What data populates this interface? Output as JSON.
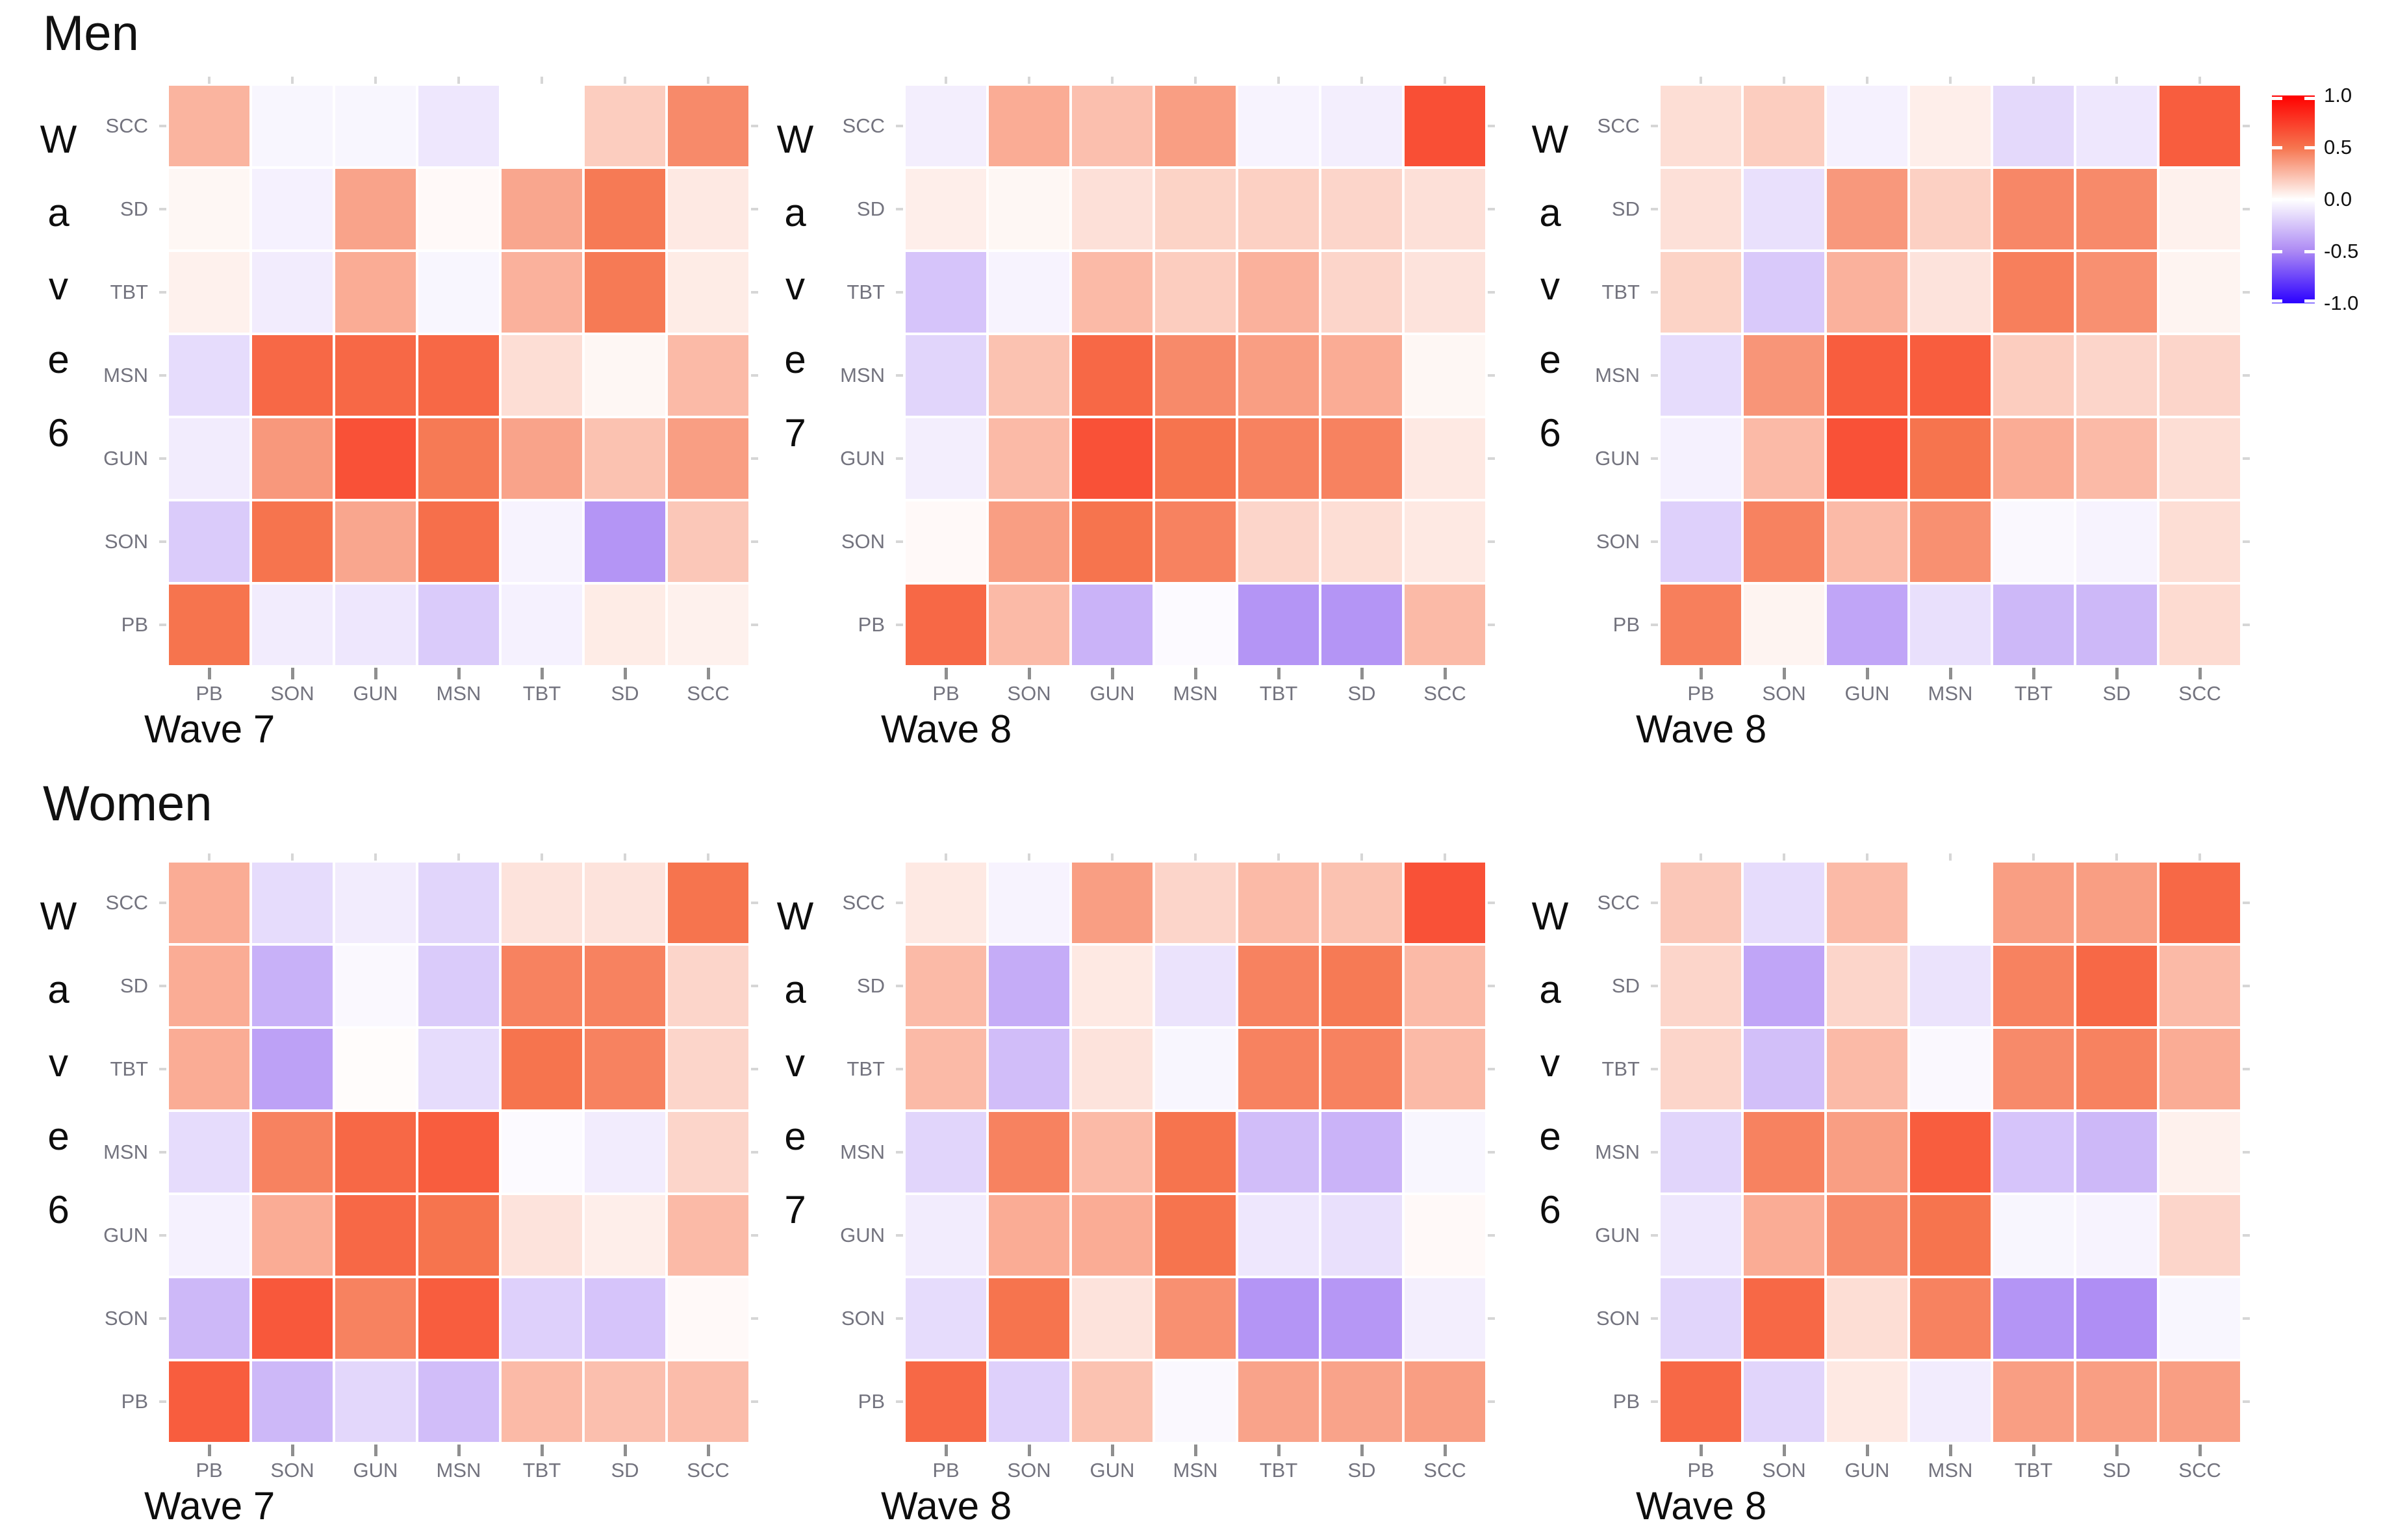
{
  "titles": {
    "men": "Men",
    "women": "Women"
  },
  "legend": {
    "ticks": [
      "1.0",
      "0.5",
      "0.0",
      "-0.5",
      "-1.0"
    ],
    "colors": {
      "high": "#ff0000",
      "mid_high": "#f6744e",
      "mid": "#ffffff",
      "mid_low": "#ac89f4",
      "low": "#2b00ff"
    },
    "range": [
      -1.0,
      1.0
    ]
  },
  "variables": [
    "PB",
    "SON",
    "GUN",
    "MSN",
    "TBT",
    "SD",
    "SCC"
  ],
  "chart_data": [
    {
      "type": "heatmap",
      "group": "Men",
      "y_axis_wave": "Wave 6",
      "x_axis_wave": "Wave 7",
      "x_categories": [
        "PB",
        "SON",
        "GUN",
        "MSN",
        "TBT",
        "SD",
        "SCC"
      ],
      "y_categories_top_to_bottom": [
        "SCC",
        "SD",
        "TBT",
        "MSN",
        "GUN",
        "SON",
        "PB"
      ],
      "value_range": [
        -1.0,
        1.0
      ],
      "values_rows_top_to_bottom": [
        [
          0.27,
          -0.04,
          -0.04,
          -0.1,
          0.0,
          0.18,
          0.42
        ],
        [
          0.03,
          -0.06,
          0.33,
          0.02,
          0.32,
          0.48,
          0.08
        ],
        [
          0.05,
          -0.08,
          0.3,
          -0.04,
          0.28,
          0.48,
          0.07
        ],
        [
          -0.15,
          0.55,
          0.55,
          0.55,
          0.12,
          0.03,
          0.25
        ],
        [
          -0.08,
          0.37,
          0.65,
          0.48,
          0.33,
          0.22,
          0.35
        ],
        [
          -0.22,
          0.5,
          0.32,
          0.52,
          -0.05,
          -0.45,
          0.2
        ],
        [
          0.5,
          -0.08,
          -0.1,
          -0.22,
          -0.06,
          0.07,
          0.05
        ]
      ]
    },
    {
      "type": "heatmap",
      "group": "Men",
      "y_axis_wave": "Wave 7",
      "x_axis_wave": "Wave 8",
      "x_categories": [
        "PB",
        "SON",
        "GUN",
        "MSN",
        "TBT",
        "SD",
        "SCC"
      ],
      "y_categories_top_to_bottom": [
        "SCC",
        "SD",
        "TBT",
        "MSN",
        "GUN",
        "SON",
        "PB"
      ],
      "value_range": [
        -1.0,
        1.0
      ],
      "values_rows_top_to_bottom": [
        [
          -0.07,
          0.3,
          0.23,
          0.35,
          -0.05,
          -0.07,
          0.66
        ],
        [
          0.06,
          0.03,
          0.11,
          0.16,
          0.17,
          0.15,
          0.11
        ],
        [
          -0.25,
          -0.05,
          0.25,
          0.18,
          0.28,
          0.15,
          0.1
        ],
        [
          -0.18,
          0.22,
          0.55,
          0.42,
          0.35,
          0.3,
          0.03
        ],
        [
          -0.07,
          0.25,
          0.65,
          0.5,
          0.45,
          0.45,
          0.08
        ],
        [
          0.02,
          0.35,
          0.5,
          0.45,
          0.15,
          0.12,
          0.08
        ],
        [
          0.55,
          0.25,
          -0.32,
          -0.02,
          -0.45,
          -0.45,
          0.25
        ]
      ]
    },
    {
      "type": "heatmap",
      "group": "Men",
      "y_axis_wave": "Wave 6",
      "x_axis_wave": "Wave 8",
      "x_categories": [
        "PB",
        "SON",
        "GUN",
        "MSN",
        "TBT",
        "SD",
        "SCC"
      ],
      "y_categories_top_to_bottom": [
        "SCC",
        "SD",
        "TBT",
        "MSN",
        "GUN",
        "SON",
        "PB"
      ],
      "value_range": [
        -1.0,
        1.0
      ],
      "values_rows_top_to_bottom": [
        [
          0.12,
          0.18,
          -0.06,
          0.06,
          -0.16,
          -0.1,
          0.6
        ],
        [
          0.11,
          -0.13,
          0.37,
          0.17,
          0.43,
          0.42,
          0.05
        ],
        [
          0.16,
          -0.23,
          0.28,
          0.1,
          0.46,
          0.4,
          0.04
        ],
        [
          -0.15,
          0.38,
          0.6,
          0.6,
          0.18,
          0.15,
          0.15
        ],
        [
          -0.06,
          0.25,
          0.65,
          0.5,
          0.3,
          0.25,
          0.12
        ],
        [
          -0.2,
          0.45,
          0.25,
          0.4,
          -0.03,
          -0.05,
          0.12
        ],
        [
          0.46,
          0.04,
          -0.38,
          -0.13,
          -0.3,
          -0.3,
          0.13
        ]
      ]
    },
    {
      "type": "heatmap",
      "group": "Women",
      "y_axis_wave": "Wave 6",
      "x_axis_wave": "Wave 7",
      "x_categories": [
        "PB",
        "SON",
        "GUN",
        "MSN",
        "TBT",
        "SD",
        "SCC"
      ],
      "y_categories_top_to_bottom": [
        "SCC",
        "SD",
        "TBT",
        "MSN",
        "GUN",
        "SON",
        "PB"
      ],
      "value_range": [
        -1.0,
        1.0
      ],
      "values_rows_top_to_bottom": [
        [
          0.3,
          -0.15,
          -0.08,
          -0.18,
          0.1,
          0.1,
          0.5
        ],
        [
          0.3,
          -0.33,
          -0.03,
          -0.22,
          0.45,
          0.45,
          0.15
        ],
        [
          0.3,
          -0.4,
          0.01,
          -0.15,
          0.5,
          0.45,
          0.15
        ],
        [
          -0.15,
          0.45,
          0.55,
          0.6,
          -0.02,
          -0.08,
          0.15
        ],
        [
          -0.06,
          0.3,
          0.55,
          0.5,
          0.1,
          0.06,
          0.25
        ],
        [
          -0.3,
          0.62,
          0.45,
          0.6,
          -0.2,
          -0.25,
          0.02
        ],
        [
          0.6,
          -0.3,
          -0.17,
          -0.28,
          0.25,
          0.23,
          0.24
        ]
      ]
    },
    {
      "type": "heatmap",
      "group": "Women",
      "y_axis_wave": "Wave 7",
      "x_axis_wave": "Wave 8",
      "x_categories": [
        "PB",
        "SON",
        "GUN",
        "MSN",
        "TBT",
        "SD",
        "SCC"
      ],
      "y_categories_top_to_bottom": [
        "SCC",
        "SD",
        "TBT",
        "MSN",
        "GUN",
        "SON",
        "PB"
      ],
      "value_range": [
        -1.0,
        1.0
      ],
      "values_rows_top_to_bottom": [
        [
          0.08,
          -0.05,
          0.35,
          0.15,
          0.25,
          0.22,
          0.65
        ],
        [
          0.25,
          -0.35,
          0.08,
          -0.12,
          0.45,
          0.48,
          0.25
        ],
        [
          0.25,
          -0.28,
          0.1,
          -0.04,
          0.45,
          0.45,
          0.25
        ],
        [
          -0.18,
          0.45,
          0.25,
          0.5,
          -0.28,
          -0.32,
          -0.04
        ],
        [
          -0.08,
          0.3,
          0.3,
          0.5,
          -0.1,
          -0.13,
          0.02
        ],
        [
          -0.15,
          0.5,
          0.1,
          0.4,
          -0.45,
          -0.44,
          -0.07
        ],
        [
          0.55,
          -0.2,
          0.22,
          -0.03,
          0.33,
          0.33,
          0.35
        ]
      ]
    },
    {
      "type": "heatmap",
      "group": "Women",
      "y_axis_wave": "Wave 6",
      "x_axis_wave": "Wave 8",
      "x_categories": [
        "PB",
        "SON",
        "GUN",
        "MSN",
        "TBT",
        "SD",
        "SCC"
      ],
      "y_categories_top_to_bottom": [
        "SCC",
        "SD",
        "TBT",
        "MSN",
        "GUN",
        "SON",
        "PB"
      ],
      "value_range": [
        -1.0,
        1.0
      ],
      "values_rows_top_to_bottom": [
        [
          0.2,
          -0.15,
          0.25,
          0.0,
          0.35,
          0.35,
          0.55
        ],
        [
          0.15,
          -0.38,
          0.15,
          -0.12,
          0.45,
          0.55,
          0.25
        ],
        [
          0.15,
          -0.27,
          0.25,
          -0.03,
          0.42,
          0.45,
          0.3
        ],
        [
          -0.18,
          0.45,
          0.35,
          0.6,
          -0.25,
          -0.3,
          0.05
        ],
        [
          -0.1,
          0.3,
          0.42,
          0.5,
          -0.04,
          -0.05,
          0.15
        ],
        [
          -0.18,
          0.55,
          0.12,
          0.45,
          -0.45,
          -0.48,
          -0.04
        ],
        [
          0.55,
          -0.18,
          0.08,
          -0.08,
          0.35,
          0.35,
          0.35
        ]
      ]
    }
  ]
}
